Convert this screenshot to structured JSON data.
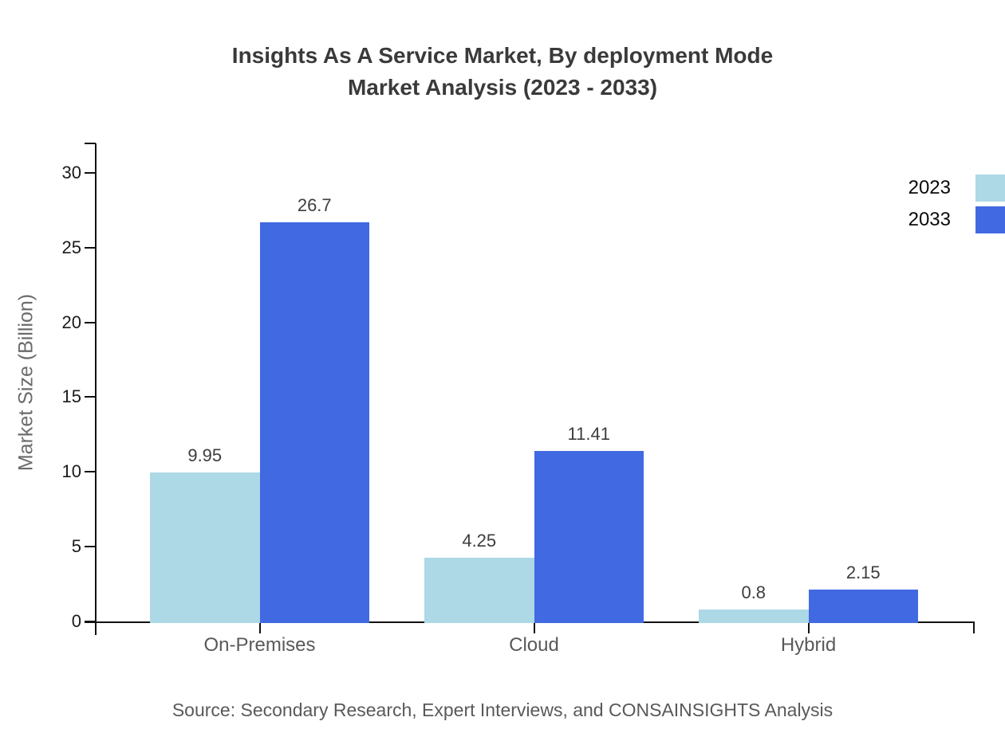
{
  "title": {
    "line1": "Insights As A Service Market, By deployment Mode",
    "line2": "Market Analysis (2023 - 2033)"
  },
  "source": "Source: Secondary Research, Expert Interviews, and CONSAINSIGHTS Analysis",
  "chart_data": {
    "type": "bar",
    "title": "Insights As A Service Market, By deployment Mode Market Analysis (2023 - 2033)",
    "categories": [
      "On-Premises",
      "Cloud",
      "Hybrid"
    ],
    "series": [
      {
        "name": "2023",
        "color": "#ADD8E6",
        "values": [
          9.95,
          4.25,
          0.8
        ]
      },
      {
        "name": "2033",
        "color": "#4169E1",
        "values": [
          26.7,
          11.41,
          2.15
        ]
      }
    ],
    "xlabel": "",
    "ylabel": "Market Size (Billion)",
    "ylim": [
      0,
      32
    ],
    "yticks": [
      0,
      5,
      10,
      15,
      20,
      25,
      30
    ],
    "grid": false,
    "legend_position": "top-right",
    "axis_color": "#111111",
    "background_color": "#ffffff"
  }
}
